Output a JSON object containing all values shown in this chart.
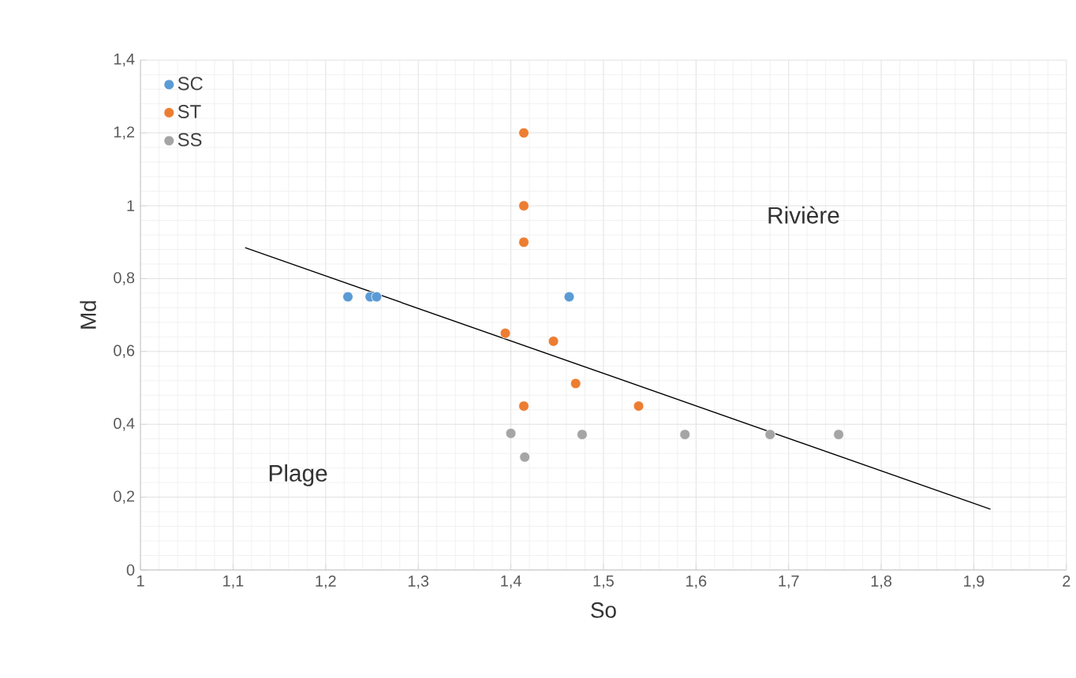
{
  "chart_data": {
    "type": "scatter",
    "xlabel": "So",
    "ylabel": "Md",
    "annotations": [
      "Rivière",
      "Plage"
    ],
    "xlim": [
      1,
      2
    ],
    "ylim": [
      0,
      1.4
    ],
    "xticks": [
      1,
      {
        "value": 1.1,
        "label": "1,1"
      },
      {
        "value": 1.2,
        "label": "1,2"
      },
      {
        "value": 1.3,
        "label": "1,3"
      },
      {
        "value": 1.4,
        "label": "1,4"
      },
      {
        "value": 1.5,
        "label": "1,5"
      },
      {
        "value": 1.6,
        "label": "1,6"
      },
      {
        "value": 1.7,
        "label": "1,7"
      },
      {
        "value": 1.8,
        "label": "1,8"
      },
      {
        "value": 1.9,
        "label": "1,9"
      },
      2
    ],
    "yticks": [
      0,
      {
        "value": 0.2,
        "label": "0,2"
      },
      {
        "value": 0.4,
        "label": "0,4"
      },
      {
        "value": 0.6,
        "label": "0,6"
      },
      {
        "value": 0.8,
        "label": "0,8"
      },
      1,
      {
        "value": 1.2,
        "label": "1,2"
      },
      {
        "value": 1.4,
        "label": "1,4"
      }
    ],
    "grid": true,
    "legend": "top left",
    "series": [
      {
        "name": "SC",
        "marker": "circle",
        "color": "#5b9bd5",
        "x": [
          1.224,
          1.248,
          1.255,
          1.463
        ],
        "values": [
          0.75,
          0.75,
          0.75,
          0.75
        ]
      },
      {
        "name": "ST",
        "marker": "circle",
        "color": "#ed7d31",
        "x": [
          1.414,
          1.414,
          1.414,
          1.394,
          1.446,
          1.47,
          1.414,
          1.538
        ],
        "values": [
          1.2,
          1.0,
          0.9,
          0.65,
          0.628,
          0.512,
          0.45,
          0.45
        ]
      },
      {
        "name": "SS",
        "marker": "circle",
        "color": "#a5a5a5",
        "x": [
          1.4,
          1.415,
          1.477,
          1.588,
          1.68,
          1.754
        ],
        "values": [
          0.375,
          0.31,
          0.372,
          0.372,
          0.372,
          0.372
        ]
      },
      {
        "type": "line",
        "marker": "none",
        "color": "#000000",
        "x": [
          1.113,
          1.918
        ],
        "values": [
          0.885,
          0.167
        ]
      }
    ]
  }
}
